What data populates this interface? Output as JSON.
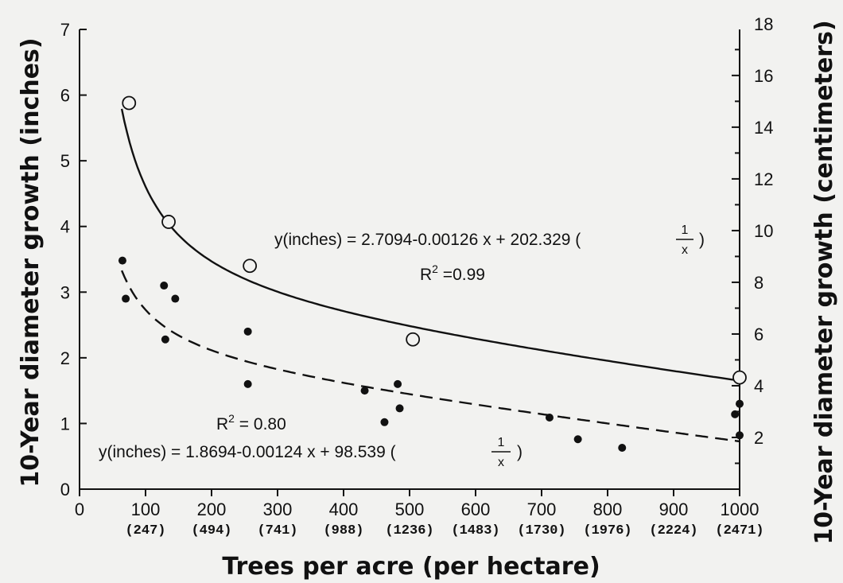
{
  "chart_data": {
    "type": "scatter",
    "xlabel": "Trees per acre (per hectare)",
    "ylabel_left": "10-Year diameter growth (inches)",
    "ylabel_right": "10-Year diameter growth (centimeters)",
    "xlim": [
      0,
      1000
    ],
    "ylim": [
      0,
      7
    ],
    "ylim_right_cm": [
      0,
      17.78
    ],
    "x_ticks": [
      "0",
      "100",
      "200",
      "300",
      "400",
      "500",
      "600",
      "700",
      "800",
      "900",
      "1000"
    ],
    "x_ticks_secondary": [
      "(247)",
      "(494)",
      "(741)",
      "(988)",
      "(1236)",
      "(1483)",
      "(1730)",
      "(1976)",
      "(2224)",
      "(2471)"
    ],
    "y_ticks_left": [
      "0",
      "1",
      "2",
      "3",
      "4",
      "5",
      "6",
      "7"
    ],
    "y_ticks_right": [
      "2",
      "4",
      "6",
      "8",
      "10",
      "12",
      "14",
      "16",
      "18"
    ],
    "series": [
      {
        "marker": "open-circle",
        "line": "solid",
        "points": [
          [
            75,
            5.88
          ],
          [
            135,
            4.07
          ],
          [
            258,
            3.4
          ],
          [
            505,
            2.28
          ],
          [
            1000,
            1.7
          ]
        ],
        "fit": {
          "a": 2.7094,
          "b": -0.00126,
          "c": 202.329
        },
        "equation": {
          "lead": "y(inches) = 2.7094-0.00126 x + 202.329 (",
          "num": "1",
          "den": "x",
          "tail": ")"
        },
        "r2": {
          "label": "R",
          "sup": "2",
          "value": " =0.99"
        }
      },
      {
        "marker": "filled-dot",
        "line": "dashed",
        "points": [
          [
            65,
            3.48
          ],
          [
            70,
            2.9
          ],
          [
            128,
            3.1
          ],
          [
            130,
            2.28
          ],
          [
            145,
            2.9
          ],
          [
            255,
            2.4
          ],
          [
            255,
            1.6
          ],
          [
            432,
            1.5
          ],
          [
            462,
            1.02
          ],
          [
            482,
            1.6
          ],
          [
            485,
            1.23
          ],
          [
            712,
            1.09
          ],
          [
            755,
            0.76
          ],
          [
            822,
            0.63
          ],
          [
            993,
            1.14
          ],
          [
            1000,
            1.3
          ],
          [
            1000,
            0.82
          ]
        ],
        "fit": {
          "a": 1.8694,
          "b": -0.00124,
          "c": 98.539
        },
        "equation": {
          "lead": "y(inches) = 1.8694-0.00124 x + 98.539 (",
          "num": "1",
          "den": "x",
          "tail": ")"
        },
        "r2": {
          "label": "R",
          "sup": "2",
          "value": " = 0.80"
        }
      }
    ]
  }
}
